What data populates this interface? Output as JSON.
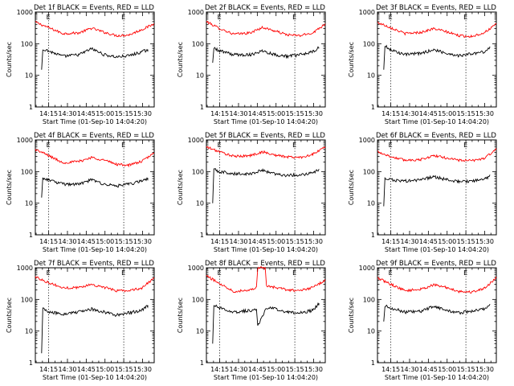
{
  "chart_data": {
    "type": "line",
    "ylabel": "Counts/sec",
    "xlabel": "Start Time (01-Sep-10 14:04:20)",
    "x_tick_labels": [
      "14:15",
      "14:30",
      "14:45",
      "15:00",
      "15:15",
      "15:30"
    ],
    "y_tick_labels": [
      "1",
      "10",
      "100",
      "1000"
    ],
    "ylim": [
      1,
      1000
    ],
    "y_scale": "log",
    "x_range_minutes_from_start": [
      0,
      95
    ],
    "x_tick_minutes_from_start": [
      10.67,
      25.67,
      40.67,
      55.67,
      70.67,
      85.67
    ],
    "vertical_markers_minutes_from_start": [
      10.67,
      70.67
    ],
    "marker_label": "E",
    "grid": false,
    "colors": {
      "events": "#000000",
      "lld": "#ff0000"
    },
    "panels": [
      {
        "title": "Det 1f BLACK = Events, RED = LLD",
        "red": {
          "x": [
            0,
            10,
            22,
            35,
            45,
            55,
            65,
            75,
            85,
            95
          ],
          "y": [
            480,
            330,
            210,
            220,
            310,
            230,
            180,
            190,
            280,
            420
          ]
        },
        "black": {
          "x": [
            5,
            6,
            10,
            22,
            35,
            45,
            55,
            65,
            75,
            85,
            90
          ],
          "y": [
            15,
            70,
            60,
            40,
            45,
            70,
            45,
            38,
            42,
            55,
            65
          ]
        }
      },
      {
        "title": "Det 2f BLACK = Events, RED = LLD",
        "red": {
          "x": [
            0,
            10,
            22,
            35,
            45,
            55,
            65,
            75,
            85,
            95
          ],
          "y": [
            500,
            310,
            200,
            220,
            330,
            250,
            190,
            180,
            220,
            430
          ]
        },
        "black": {
          "x": [
            5,
            6,
            10,
            22,
            35,
            45,
            55,
            65,
            75,
            85,
            90
          ],
          "y": [
            25,
            75,
            60,
            45,
            45,
            60,
            45,
            40,
            45,
            55,
            75
          ]
        }
      },
      {
        "title": "Det 3f BLACK = Events, RED = LLD",
        "red": {
          "x": [
            0,
            10,
            22,
            35,
            45,
            55,
            65,
            75,
            85,
            95
          ],
          "y": [
            470,
            330,
            210,
            230,
            300,
            240,
            180,
            170,
            220,
            410
          ]
        },
        "black": {
          "x": [
            5,
            6,
            10,
            22,
            35,
            45,
            55,
            65,
            75,
            85,
            90
          ],
          "y": [
            15,
            85,
            65,
            45,
            50,
            65,
            50,
            42,
            48,
            55,
            75
          ]
        }
      },
      {
        "title": "Det 4f BLACK = Events, RED = LLD",
        "red": {
          "x": [
            0,
            10,
            22,
            35,
            45,
            55,
            65,
            75,
            85,
            95
          ],
          "y": [
            500,
            330,
            190,
            210,
            280,
            230,
            170,
            160,
            210,
            380
          ]
        },
        "black": {
          "x": [
            5,
            6,
            10,
            22,
            35,
            45,
            55,
            65,
            75,
            85,
            90
          ],
          "y": [
            15,
            65,
            55,
            40,
            40,
            55,
            40,
            35,
            40,
            50,
            62
          ]
        }
      },
      {
        "title": "Det 5f BLACK = Events, RED = LLD",
        "red": {
          "x": [
            0,
            10,
            22,
            35,
            45,
            55,
            65,
            75,
            85,
            95
          ],
          "y": [
            600,
            430,
            300,
            320,
            420,
            330,
            290,
            280,
            350,
            600
          ]
        },
        "black": {
          "x": [
            5,
            6,
            10,
            22,
            35,
            45,
            55,
            65,
            75,
            85,
            90
          ],
          "y": [
            10,
            120,
            100,
            85,
            85,
            110,
            85,
            75,
            80,
            90,
            120
          ]
        }
      },
      {
        "title": "Det 6f BLACK = Events, RED = LLD",
        "red": {
          "x": [
            0,
            10,
            22,
            35,
            45,
            55,
            65,
            75,
            85,
            95
          ],
          "y": [
            430,
            300,
            230,
            240,
            320,
            270,
            230,
            220,
            260,
            500
          ]
        },
        "black": {
          "x": [
            5,
            6,
            10,
            22,
            35,
            45,
            55,
            65,
            75,
            85,
            90
          ],
          "y": [
            8,
            60,
            55,
            50,
            55,
            70,
            55,
            48,
            50,
            55,
            75
          ]
        }
      },
      {
        "title": "Det 7f BLACK = Events, RED = LLD",
        "red": {
          "x": [
            0,
            10,
            22,
            35,
            45,
            55,
            65,
            75,
            85,
            95
          ],
          "y": [
            520,
            350,
            230,
            240,
            300,
            240,
            190,
            190,
            230,
            480
          ]
        },
        "black": {
          "x": [
            5,
            6,
            10,
            22,
            35,
            45,
            55,
            65,
            75,
            85,
            90
          ],
          "y": [
            2,
            50,
            40,
            35,
            40,
            50,
            40,
            32,
            38,
            45,
            65
          ]
        }
      },
      {
        "title": "Det 8f BLACK = Events, RED = LLD",
        "red": {
          "x": [
            0,
            10,
            22,
            35,
            40,
            41,
            47,
            48,
            55,
            65,
            75,
            85,
            95
          ],
          "y": [
            560,
            330,
            180,
            200,
            250,
            1000,
            1000,
            260,
            240,
            200,
            190,
            240,
            400
          ]
        },
        "black": {
          "x": [
            5,
            6,
            10,
            22,
            35,
            40,
            41,
            48,
            55,
            65,
            75,
            85,
            90
          ],
          "y": [
            4,
            65,
            55,
            40,
            45,
            50,
            14,
            55,
            50,
            40,
            38,
            45,
            75
          ]
        }
      },
      {
        "title": "Det 9f BLACK = Events, RED = LLD",
        "red": {
          "x": [
            0,
            10,
            22,
            35,
            45,
            55,
            65,
            75,
            85,
            95
          ],
          "y": [
            480,
            310,
            190,
            210,
            290,
            240,
            180,
            170,
            220,
            480
          ]
        },
        "black": {
          "x": [
            5,
            6,
            10,
            22,
            35,
            45,
            55,
            65,
            75,
            85,
            90
          ],
          "y": [
            20,
            65,
            55,
            40,
            42,
            62,
            45,
            38,
            42,
            50,
            68
          ]
        }
      }
    ]
  }
}
